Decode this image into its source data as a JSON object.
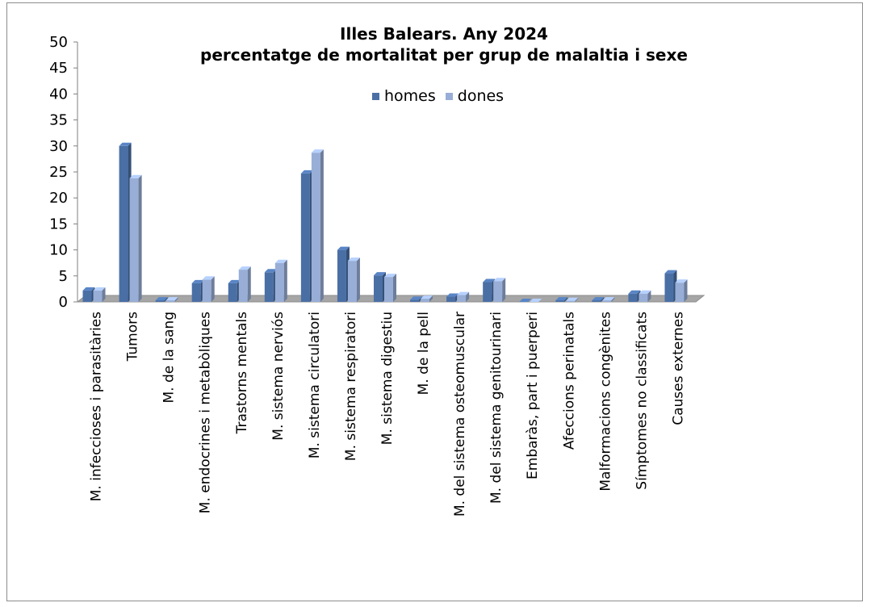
{
  "chart_data": {
    "type": "bar",
    "title": "Illes Balears. Any 2024",
    "subtitle": "percentatge de mortalitat per grup de malaltia i sexe",
    "ylim": [
      0,
      50
    ],
    "yticks": [
      "0",
      "5",
      "10",
      "15",
      "20",
      "25",
      "30",
      "35",
      "40",
      "45",
      "50"
    ],
    "legend_position": "top",
    "categories": [
      "M. infeccioses i parasitàries",
      "Tumors",
      "M. de la sang",
      "M. endocrines i metabòliques",
      "Trastorns  mentals",
      "M. sistema nerviós",
      "M. sistema circulatori",
      "M. sistema respiratori",
      "M. sistema digestiu",
      "M. de la pell",
      "M. del sistema osteomuscular",
      "M. del sistema genitourinari",
      "Embaràs, part i puerperi",
      "Afeccions perinatals",
      "Malformacions congènites",
      "Símptomes no classificats",
      "Causes externes"
    ],
    "series": [
      {
        "name": "homes",
        "color": "#4a6fa5",
        "values": [
          2.2,
          30.0,
          0.3,
          3.6,
          3.6,
          5.7,
          24.7,
          10.0,
          5.1,
          0.4,
          1.0,
          3.8,
          0.0,
          0.3,
          0.3,
          1.6,
          5.5
        ]
      },
      {
        "name": "dones",
        "color": "#98aed6",
        "values": [
          2.2,
          23.8,
          0.3,
          4.3,
          6.2,
          7.5,
          28.7,
          7.9,
          4.8,
          0.6,
          1.3,
          4.0,
          0.0,
          0.2,
          0.3,
          1.6,
          3.7
        ]
      }
    ]
  }
}
